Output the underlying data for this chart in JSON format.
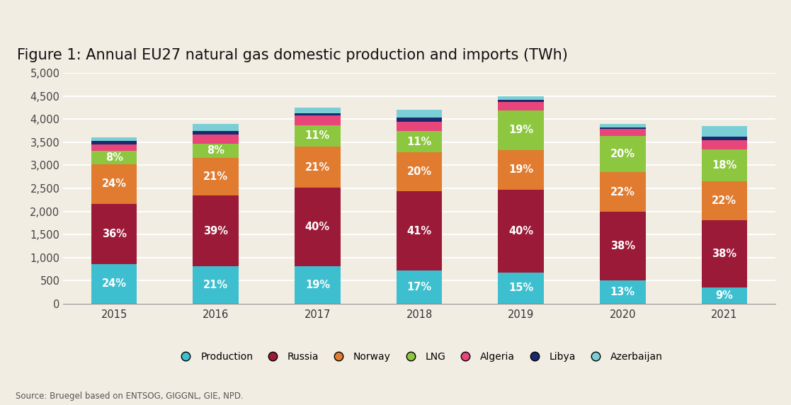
{
  "title": "Figure 1: Annual EU27 natural gas domestic production and imports (TWh)",
  "years": [
    2015,
    2016,
    2017,
    2018,
    2019,
    2020,
    2021
  ],
  "segments": {
    "Production": {
      "values": [
        864,
        819,
        808,
        714,
        675,
        507,
        347
      ],
      "color": "#3dbfcf",
      "pct_labels": [
        "24%",
        "21%",
        "19%",
        "17%",
        "15%",
        "13%",
        "9%"
      ]
    },
    "Russia": {
      "values": [
        1296,
        1521,
        1700,
        1722,
        1800,
        1482,
        1463
      ],
      "color": "#9b1a38",
      "pct_labels": [
        "36%",
        "39%",
        "40%",
        "41%",
        "40%",
        "38%",
        "38%"
      ]
    },
    "Norway": {
      "values": [
        864,
        819,
        893,
        840,
        855,
        858,
        847
      ],
      "color": "#e07b30",
      "pct_labels": [
        "24%",
        "21%",
        "21%",
        "20%",
        "19%",
        "22%",
        "22%"
      ]
    },
    "LNG": {
      "values": [
        288,
        312,
        468,
        462,
        855,
        780,
        693
      ],
      "color": "#8dc63f",
      "pct_labels": [
        "8%",
        "8%",
        "11%",
        "11%",
        "19%",
        "20%",
        "18%"
      ]
    },
    "Algeria": {
      "values": [
        144,
        195,
        213,
        210,
        180,
        156,
        193
      ],
      "color": "#e8457a",
      "pct_labels": [
        "",
        "",
        "",
        "",
        "",
        "",
        ""
      ]
    },
    "Libya": {
      "values": [
        72,
        78,
        43,
        84,
        45,
        39,
        77
      ],
      "color": "#1a2a6c",
      "pct_labels": [
        "",
        "",
        "",
        "",
        "",
        "",
        ""
      ]
    },
    "Azerbaijan": {
      "values": [
        72,
        156,
        128,
        168,
        90,
        78,
        231
      ],
      "color": "#7acfd6",
      "pct_labels": [
        "",
        "",
        "",
        "",
        "",
        "",
        ""
      ]
    }
  },
  "segment_order": [
    "Production",
    "Russia",
    "Norway",
    "LNG",
    "Algeria",
    "Libya",
    "Azerbaijan"
  ],
  "ylim": [
    0,
    5000
  ],
  "yticks": [
    0,
    500,
    1000,
    1500,
    2000,
    2500,
    3000,
    3500,
    4000,
    4500,
    5000
  ],
  "background_color": "#f2ede3",
  "source_text": "Source: Bruegel based on ENTSOG, GIGGNL, GIE, NPD.",
  "title_fontsize": 15,
  "label_fontsize": 10.5,
  "tick_fontsize": 10.5,
  "bar_width": 0.45
}
